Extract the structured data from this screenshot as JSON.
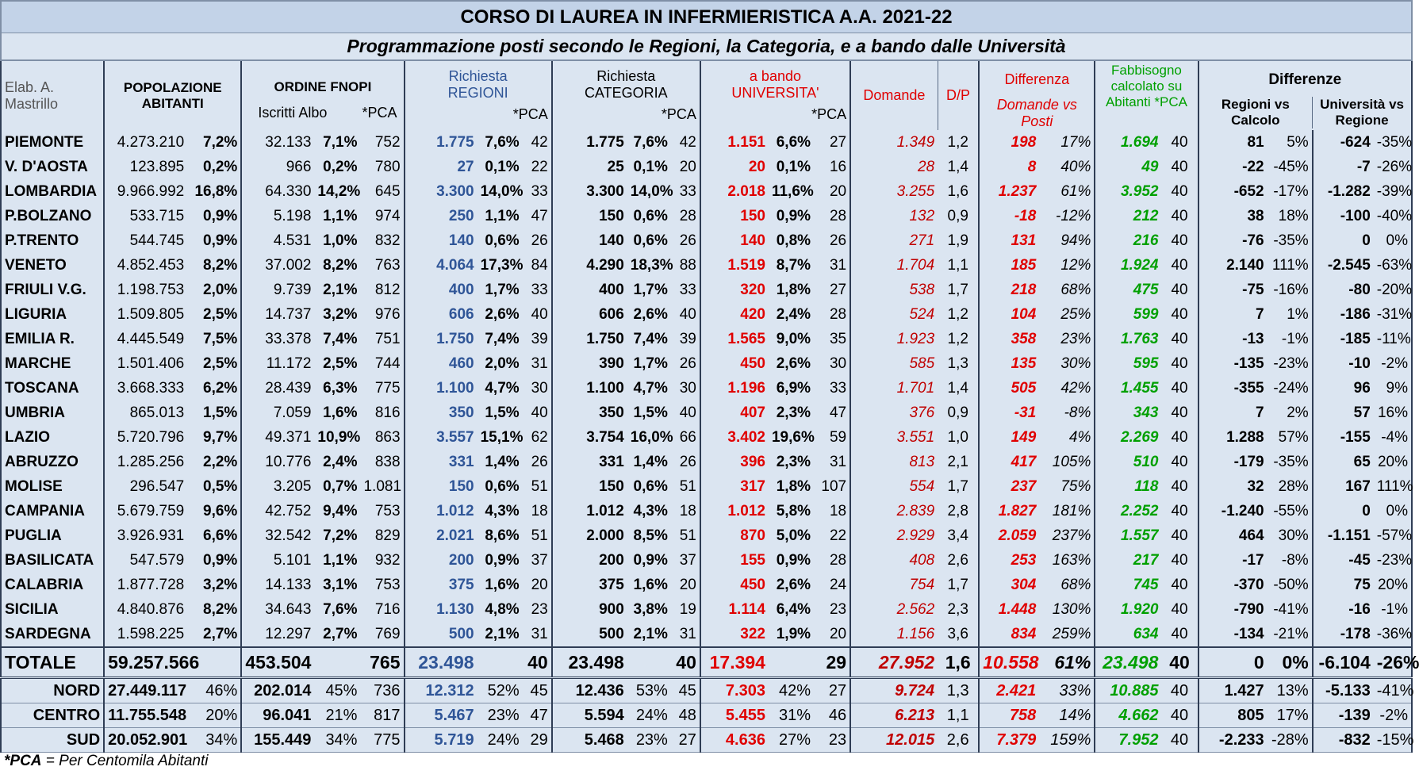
{
  "title": "CORSO DI LAUREA IN INFERMIERISTICA  A.A. 2021-22",
  "subtitle": "Programmazione posti secondo le Regioni, la Categoria, e a bando dalle Università",
  "headers": {
    "elab": "Elab. A. Mastrillo",
    "popolazione": "POPOLAZIONE ABITANTI",
    "ordine": "ORDINE FNOPI",
    "iscritti": "Iscritti Albo",
    "pca": "*PCA",
    "richiesta_regioni": "Richiesta REGIONI",
    "richiesta_categoria": "Richiesta CATEGORIA",
    "a_bando": "a bando UNIVERSITA'",
    "domande": "Domande",
    "dp": "D/P",
    "differenza": "Differenza",
    "domande_vs_posti": "Domande vs Posti",
    "fabbisogno": "Fabbisogno calcolato su Abitanti *PCA",
    "differenze": "Differenze",
    "regioni_vs_calcolo": "Regioni vs Calcolo",
    "universita_vs_regione": "Università vs Regione"
  },
  "rows": [
    [
      "PIEMONTE",
      "4.273.210",
      "7,2%",
      "32.133",
      "7,1%",
      "752",
      "1.775",
      "7,6%",
      "42",
      "1.775",
      "7,6%",
      "42",
      "1.151",
      "6,6%",
      "27",
      "1.349",
      "1,2",
      "198",
      "17%",
      "1.694",
      "40",
      "81",
      "5%",
      "-624",
      "-35%"
    ],
    [
      "V. D'AOSTA",
      "123.895",
      "0,2%",
      "966",
      "0,2%",
      "780",
      "27",
      "0,1%",
      "22",
      "25",
      "0,1%",
      "20",
      "20",
      "0,1%",
      "16",
      "28",
      "1,4",
      "8",
      "40%",
      "49",
      "40",
      "-22",
      "-45%",
      "-7",
      "-26%"
    ],
    [
      "LOMBARDIA",
      "9.966.992",
      "16,8%",
      "64.330",
      "14,2%",
      "645",
      "3.300",
      "14,0%",
      "33",
      "3.300",
      "14,0%",
      "33",
      "2.018",
      "11,6%",
      "20",
      "3.255",
      "1,6",
      "1.237",
      "61%",
      "3.952",
      "40",
      "-652",
      "-17%",
      "-1.282",
      "-39%"
    ],
    [
      "P.BOLZANO",
      "533.715",
      "0,9%",
      "5.198",
      "1,1%",
      "974",
      "250",
      "1,1%",
      "47",
      "150",
      "0,6%",
      "28",
      "150",
      "0,9%",
      "28",
      "132",
      "0,9",
      "-18",
      "-12%",
      "212",
      "40",
      "38",
      "18%",
      "-100",
      "-40%"
    ],
    [
      "P.TRENTO",
      "544.745",
      "0,9%",
      "4.531",
      "1,0%",
      "832",
      "140",
      "0,6%",
      "26",
      "140",
      "0,6%",
      "26",
      "140",
      "0,8%",
      "26",
      "271",
      "1,9",
      "131",
      "94%",
      "216",
      "40",
      "-76",
      "-35%",
      "0",
      "0%"
    ],
    [
      "VENETO",
      "4.852.453",
      "8,2%",
      "37.002",
      "8,2%",
      "763",
      "4.064",
      "17,3%",
      "84",
      "4.290",
      "18,3%",
      "88",
      "1.519",
      "8,7%",
      "31",
      "1.704",
      "1,1",
      "185",
      "12%",
      "1.924",
      "40",
      "2.140",
      "111%",
      "-2.545",
      "-63%"
    ],
    [
      "FRIULI V.G.",
      "1.198.753",
      "2,0%",
      "9.739",
      "2,1%",
      "812",
      "400",
      "1,7%",
      "33",
      "400",
      "1,7%",
      "33",
      "320",
      "1,8%",
      "27",
      "538",
      "1,7",
      "218",
      "68%",
      "475",
      "40",
      "-75",
      "-16%",
      "-80",
      "-20%"
    ],
    [
      "LIGURIA",
      "1.509.805",
      "2,5%",
      "14.737",
      "3,2%",
      "976",
      "606",
      "2,6%",
      "40",
      "606",
      "2,6%",
      "40",
      "420",
      "2,4%",
      "28",
      "524",
      "1,2",
      "104",
      "25%",
      "599",
      "40",
      "7",
      "1%",
      "-186",
      "-31%"
    ],
    [
      "EMILIA R.",
      "4.445.549",
      "7,5%",
      "33.378",
      "7,4%",
      "751",
      "1.750",
      "7,4%",
      "39",
      "1.750",
      "7,4%",
      "39",
      "1.565",
      "9,0%",
      "35",
      "1.923",
      "1,2",
      "358",
      "23%",
      "1.763",
      "40",
      "-13",
      "-1%",
      "-185",
      "-11%"
    ],
    [
      "MARCHE",
      "1.501.406",
      "2,5%",
      "11.172",
      "2,5%",
      "744",
      "460",
      "2,0%",
      "31",
      "390",
      "1,7%",
      "26",
      "450",
      "2,6%",
      "30",
      "585",
      "1,3",
      "135",
      "30%",
      "595",
      "40",
      "-135",
      "-23%",
      "-10",
      "-2%"
    ],
    [
      "TOSCANA",
      "3.668.333",
      "6,2%",
      "28.439",
      "6,3%",
      "775",
      "1.100",
      "4,7%",
      "30",
      "1.100",
      "4,7%",
      "30",
      "1.196",
      "6,9%",
      "33",
      "1.701",
      "1,4",
      "505",
      "42%",
      "1.455",
      "40",
      "-355",
      "-24%",
      "96",
      "9%"
    ],
    [
      "UMBRIA",
      "865.013",
      "1,5%",
      "7.059",
      "1,6%",
      "816",
      "350",
      "1,5%",
      "40",
      "350",
      "1,5%",
      "40",
      "407",
      "2,3%",
      "47",
      "376",
      "0,9",
      "-31",
      "-8%",
      "343",
      "40",
      "7",
      "2%",
      "57",
      "16%"
    ],
    [
      "LAZIO",
      "5.720.796",
      "9,7%",
      "49.371",
      "10,9%",
      "863",
      "3.557",
      "15,1%",
      "62",
      "3.754",
      "16,0%",
      "66",
      "3.402",
      "19,6%",
      "59",
      "3.551",
      "1,0",
      "149",
      "4%",
      "2.269",
      "40",
      "1.288",
      "57%",
      "-155",
      "-4%"
    ],
    [
      "ABRUZZO",
      "1.285.256",
      "2,2%",
      "10.776",
      "2,4%",
      "838",
      "331",
      "1,4%",
      "26",
      "331",
      "1,4%",
      "26",
      "396",
      "2,3%",
      "31",
      "813",
      "2,1",
      "417",
      "105%",
      "510",
      "40",
      "-179",
      "-35%",
      "65",
      "20%"
    ],
    [
      "MOLISE",
      "296.547",
      "0,5%",
      "3.205",
      "0,7%",
      "1.081",
      "150",
      "0,6%",
      "51",
      "150",
      "0,6%",
      "51",
      "317",
      "1,8%",
      "107",
      "554",
      "1,7",
      "237",
      "75%",
      "118",
      "40",
      "32",
      "28%",
      "167",
      "111%"
    ],
    [
      "CAMPANIA",
      "5.679.759",
      "9,6%",
      "42.752",
      "9,4%",
      "753",
      "1.012",
      "4,3%",
      "18",
      "1.012",
      "4,3%",
      "18",
      "1.012",
      "5,8%",
      "18",
      "2.839",
      "2,8",
      "1.827",
      "181%",
      "2.252",
      "40",
      "-1.240",
      "-55%",
      "0",
      "0%"
    ],
    [
      "PUGLIA",
      "3.926.931",
      "6,6%",
      "32.542",
      "7,2%",
      "829",
      "2.021",
      "8,6%",
      "51",
      "2.000",
      "8,5%",
      "51",
      "870",
      "5,0%",
      "22",
      "2.929",
      "3,4",
      "2.059",
      "237%",
      "1.557",
      "40",
      "464",
      "30%",
      "-1.151",
      "-57%"
    ],
    [
      "BASILICATA",
      "547.579",
      "0,9%",
      "5.101",
      "1,1%",
      "932",
      "200",
      "0,9%",
      "37",
      "200",
      "0,9%",
      "37",
      "155",
      "0,9%",
      "28",
      "408",
      "2,6",
      "253",
      "163%",
      "217",
      "40",
      "-17",
      "-8%",
      "-45",
      "-23%"
    ],
    [
      "CALABRIA",
      "1.877.728",
      "3,2%",
      "14.133",
      "3,1%",
      "753",
      "375",
      "1,6%",
      "20",
      "375",
      "1,6%",
      "20",
      "450",
      "2,6%",
      "24",
      "754",
      "1,7",
      "304",
      "68%",
      "745",
      "40",
      "-370",
      "-50%",
      "75",
      "20%"
    ],
    [
      "SICILIA",
      "4.840.876",
      "8,2%",
      "34.643",
      "7,6%",
      "716",
      "1.130",
      "4,8%",
      "23",
      "900",
      "3,8%",
      "19",
      "1.114",
      "6,4%",
      "23",
      "2.562",
      "2,3",
      "1.448",
      "130%",
      "1.920",
      "40",
      "-790",
      "-41%",
      "-16",
      "-1%"
    ],
    [
      "SARDEGNA",
      "1.598.225",
      "2,7%",
      "12.297",
      "2,7%",
      "769",
      "500",
      "2,1%",
      "31",
      "500",
      "2,1%",
      "31",
      "322",
      "1,9%",
      "20",
      "1.156",
      "3,6",
      "834",
      "259%",
      "634",
      "40",
      "-134",
      "-21%",
      "-178",
      "-36%"
    ]
  ],
  "totale": [
    "TOTALE",
    "59.257.566",
    "",
    "453.504",
    "",
    "765",
    "23.498",
    "",
    "40",
    "23.498",
    "",
    "40",
    "17.394",
    "",
    "29",
    "27.952",
    "1,6",
    "10.558",
    "61%",
    "23.498",
    "40",
    "0",
    "0%",
    "-6.104",
    "-26%"
  ],
  "aree": [
    [
      "NORD",
      "27.449.117",
      "46%",
      "202.014",
      "45%",
      "736",
      "12.312",
      "52%",
      "45",
      "12.436",
      "53%",
      "45",
      "7.303",
      "42%",
      "27",
      "9.724",
      "1,3",
      "2.421",
      "33%",
      "10.885",
      "40",
      "1.427",
      "13%",
      "-5.133",
      "-41%"
    ],
    [
      "CENTRO",
      "11.755.548",
      "20%",
      "96.041",
      "21%",
      "817",
      "5.467",
      "23%",
      "47",
      "5.594",
      "24%",
      "48",
      "5.455",
      "31%",
      "46",
      "6.213",
      "1,1",
      "758",
      "14%",
      "4.662",
      "40",
      "805",
      "17%",
      "-139",
      "-2%"
    ],
    [
      "SUD",
      "20.052.901",
      "34%",
      "155.449",
      "34%",
      "775",
      "5.719",
      "24%",
      "29",
      "5.468",
      "23%",
      "27",
      "4.636",
      "27%",
      "23",
      "12.015",
      "2,6",
      "7.379",
      "159%",
      "7.952",
      "40",
      "-2.233",
      "-28%",
      "-832",
      "-15%"
    ]
  ],
  "footnote_key": "*PCA",
  "footnote_text": " = Per Centomila Abitanti"
}
